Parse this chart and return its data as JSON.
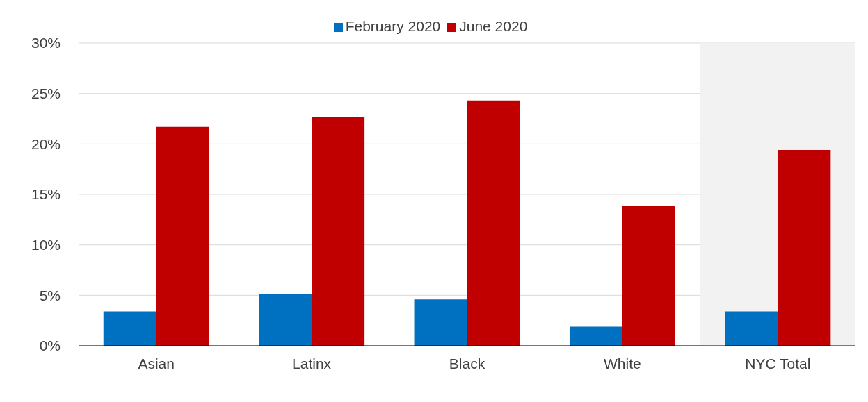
{
  "chart_data": {
    "type": "bar",
    "categories": [
      "Asian",
      "Latinx",
      "Black",
      "White",
      "NYC Total"
    ],
    "series": [
      {
        "name": "February 2020",
        "color": "#0070c0",
        "values": [
          3.4,
          5.1,
          4.6,
          1.9,
          3.4
        ]
      },
      {
        "name": "June 2020",
        "color": "#c00000",
        "values": [
          21.7,
          22.7,
          24.3,
          13.9,
          19.4
        ]
      }
    ],
    "ylim": [
      0,
      30
    ],
    "yticks": [
      {
        "value": 0,
        "label": "0%"
      },
      {
        "value": 5,
        "label": "5%"
      },
      {
        "value": 10,
        "label": "10%"
      },
      {
        "value": 15,
        "label": "15%"
      },
      {
        "value": 20,
        "label": "20%"
      },
      {
        "value": 25,
        "label": "25%"
      },
      {
        "value": 30,
        "label": "30%"
      }
    ],
    "grid": "y",
    "legend": "top",
    "bands": [
      {
        "axis": "x",
        "from": "NYC Total",
        "to": "NYC Total",
        "color": "#f2f2f2"
      }
    ]
  }
}
